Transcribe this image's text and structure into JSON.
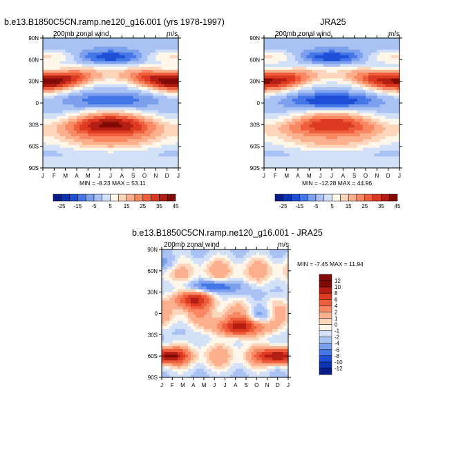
{
  "chart_data": [
    {
      "type": "heatmap",
      "title": "b.e13.B1850C5CN.ramp.ne120_g16.001 (yrs 1978-1997)",
      "variable_label": "200mb zonal wind",
      "units": "m/s",
      "x_ticks": [
        "J",
        "F",
        "M",
        "A",
        "M",
        "J",
        "J",
        "A",
        "S",
        "O",
        "N",
        "D",
        "J"
      ],
      "y_ticks": [
        "90N",
        "60N",
        "30N",
        "0",
        "30S",
        "60S",
        "90S"
      ],
      "ylim": [
        -90,
        90
      ],
      "min_label": "MIN = -8.23",
      "max_label": "MAX = 53.11",
      "min": -8.23,
      "max": 53.11,
      "colorbar_labels": [
        "-25",
        "-15",
        "-5",
        "5",
        "15",
        "25",
        "35",
        "45"
      ],
      "features": [
        {
          "month": 1.0,
          "lat": 30,
          "value": 50
        },
        {
          "month": 12.0,
          "lat": 30,
          "value": 40
        },
        {
          "month": 7.5,
          "lat": -30,
          "value": 50
        },
        {
          "month": 1.0,
          "lat": -50,
          "value": 35
        },
        {
          "month": 7.0,
          "lat": 0,
          "value": -6
        },
        {
          "month": 7.0,
          "lat": 65,
          "value": -5
        }
      ]
    },
    {
      "type": "heatmap",
      "title": "JRA25",
      "variable_label": "200mb zonal wind",
      "units": "m/s",
      "x_ticks": [
        "J",
        "F",
        "M",
        "A",
        "M",
        "J",
        "J",
        "A",
        "S",
        "O",
        "N",
        "D",
        "J"
      ],
      "y_ticks": [
        "90N",
        "60N",
        "30N",
        "0",
        "30S",
        "60S",
        "90S"
      ],
      "ylim": [
        -90,
        90
      ],
      "min_label": "MIN = -12.28",
      "max_label": "MAX = 44.96",
      "min": -12.28,
      "max": 44.96,
      "colorbar_labels": [
        "-25",
        "-15",
        "-5",
        "5",
        "15",
        "25",
        "35",
        "45"
      ],
      "features": [
        {
          "month": 1.0,
          "lat": 30,
          "value": 44
        },
        {
          "month": 12.0,
          "lat": 30,
          "value": 38
        },
        {
          "month": 7.5,
          "lat": -30,
          "value": 38
        },
        {
          "month": 7.0,
          "lat": 2,
          "value": -11
        },
        {
          "month": 7.0,
          "lat": 65,
          "value": -5
        }
      ]
    },
    {
      "type": "heatmap",
      "title": "b.e13.B1850C5CN.ramp.ne120_g16.001 - JRA25",
      "variable_label": "200mb zonal wind",
      "units": "m/s",
      "x_ticks": [
        "J",
        "F",
        "M",
        "A",
        "M",
        "J",
        "J",
        "A",
        "S",
        "O",
        "N",
        "D",
        "J"
      ],
      "y_ticks": [
        "90N",
        "60N",
        "30N",
        "0",
        "30S",
        "60S",
        "90S"
      ],
      "ylim": [
        -90,
        90
      ],
      "min_label": "MIN =  -7.45",
      "max_label": "MAX =  11.94",
      "min": -7.45,
      "max": 11.94,
      "colorbar_labels": [
        "12",
        "10",
        "8",
        "6",
        "4",
        "2",
        "1",
        "0",
        "-1",
        "-2",
        "-4",
        "-6",
        "-8",
        "-10",
        "-12"
      ],
      "features": [
        {
          "month": 4.0,
          "lat": 20,
          "value": 10
        },
        {
          "month": 8.5,
          "lat": -20,
          "value": 10
        },
        {
          "month": 1.5,
          "lat": -60,
          "value": 11
        },
        {
          "month": 12.0,
          "lat": -60,
          "value": 11
        },
        {
          "month": 6.0,
          "lat": 38,
          "value": -6
        },
        {
          "month": 10.5,
          "lat": -2,
          "value": -4
        },
        {
          "month": 1.5,
          "lat": 70,
          "value": -3
        }
      ]
    }
  ],
  "colors": {
    "full_scale": [
      "#081d8a",
      "#0b33b4",
      "#1f4fd6",
      "#4576e8",
      "#7da0ee",
      "#a9c2f3",
      "#d2e1f8",
      "#fff6ea",
      "#fdd5bb",
      "#fcaf8d",
      "#f88862",
      "#ef5e3c",
      "#dc3b22",
      "#b51e12",
      "#820b06"
    ],
    "diff_scale": [
      "#820b06",
      "#b51e12",
      "#dc3b22",
      "#ef5e3c",
      "#f88862",
      "#fcaf8d",
      "#fdd5bb",
      "#fff6ea",
      "#d2e1f8",
      "#a9c2f3",
      "#7da0ee",
      "#4576e8",
      "#1f4fd6",
      "#0b33b4",
      "#081d8a"
    ]
  }
}
